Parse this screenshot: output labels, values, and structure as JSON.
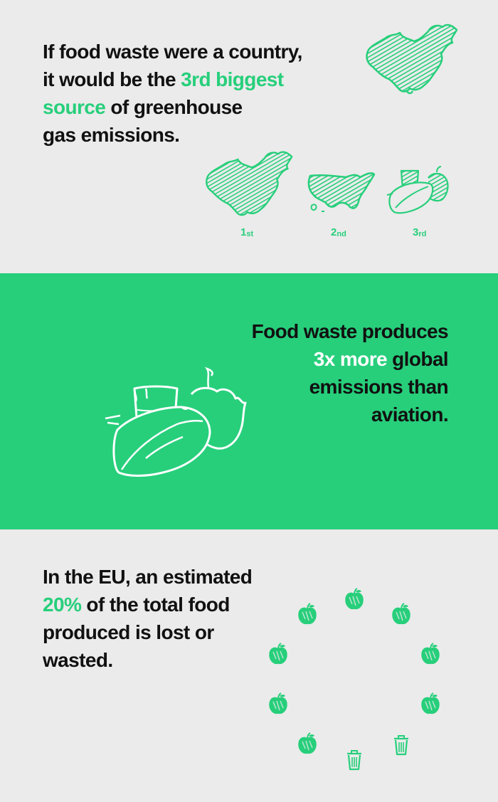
{
  "colors": {
    "accent": "#27cf7b",
    "background": "#ebebeb",
    "text": "#111111",
    "highlight_on_green": "#ffffff"
  },
  "section1": {
    "line1": "If food waste were a country,",
    "line2_pre": "it would be the ",
    "line2_highlight": "3rd biggest",
    "line3_highlight": "source",
    "line3_post": " of greenhouse",
    "line4": "gas emissions.",
    "icons": [
      "china-map-icon",
      "china-map-icon",
      "usa-map-icon",
      "food-waste-icon"
    ],
    "ranks": [
      {
        "num": "1",
        "suffix": "st"
      },
      {
        "num": "2",
        "suffix": "nd"
      },
      {
        "num": "3",
        "suffix": "rd"
      }
    ]
  },
  "section2": {
    "line1": "Food waste produces",
    "line2_highlight": "3x more",
    "line2_post": " global",
    "line3": "emissions than",
    "line4": "aviation.",
    "icon": "food-waste-icon"
  },
  "section3": {
    "line1": "In the EU, an estimated",
    "line2_highlight": "20%",
    "line2_post": " of the total food",
    "line3": "produced is lost or",
    "line4": "wasted.",
    "icons": {
      "apple": "apple-icon",
      "bin": "trash-bin-icon"
    },
    "circle": {
      "apples": 8,
      "bins": 2
    }
  }
}
